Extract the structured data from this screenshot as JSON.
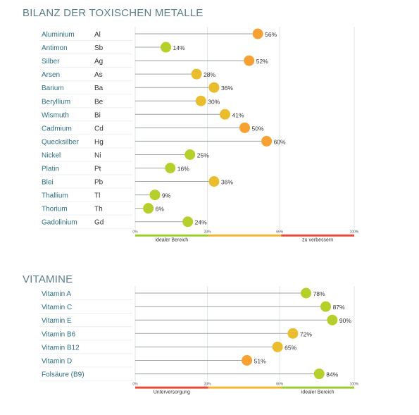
{
  "chart_data": [
    {
      "type": "lollipop",
      "title": "BILANZ DER TOXISCHEN METALLE",
      "unit": "%",
      "xlim": [
        0,
        100
      ],
      "ticks": [
        "0%",
        "33%",
        "66%",
        "100%"
      ],
      "categories": [
        "Aluminium",
        "Antimon",
        "Silber",
        "Arsen",
        "Barium",
        "Beryllium",
        "Wismuth",
        "Cadmium",
        "Quecksilber",
        "Nickel",
        "Platin",
        "Blei",
        "Thallium",
        "Thorium",
        "Gadolinium"
      ],
      "symbols": [
        "Al",
        "Sb",
        "Ag",
        "As",
        "Ba",
        "Be",
        "Bi",
        "Cd",
        "Hg",
        "Ni",
        "Pt",
        "Pb",
        "Tl",
        "Th",
        "Gd"
      ],
      "values": [
        56,
        14,
        52,
        28,
        36,
        30,
        41,
        50,
        60,
        25,
        16,
        36,
        9,
        6,
        24
      ],
      "value_labels": [
        "56%",
        "14%",
        "52%",
        "28%",
        "36%",
        "30%",
        "41%",
        "50%",
        "60%",
        "25%",
        "16%",
        "36%",
        "9%",
        "6%",
        "24%"
      ],
      "scale_bands": [
        {
          "label": "idealer Bereich",
          "color": "#9ccc2c"
        },
        {
          "label": "",
          "color": "#f2b732"
        },
        {
          "label": "zu verbessern",
          "color": "#e84a3a"
        }
      ]
    },
    {
      "type": "lollipop",
      "title": "VITAMINE",
      "unit": "%",
      "xlim": [
        0,
        100
      ],
      "ticks": [
        "0%",
        "33%",
        "66%",
        "100%"
      ],
      "categories": [
        "Vitamin A",
        "Vitamin C",
        "Vitamin E",
        "Vitamin B6",
        "Vitamin B12",
        "Vitamin D",
        "Folsäure (B9)"
      ],
      "values": [
        78,
        87,
        90,
        72,
        65,
        51,
        84
      ],
      "value_labels": [
        "78%",
        "87%",
        "90%",
        "72%",
        "65%",
        "51%",
        "84%"
      ],
      "scale_bands": [
        {
          "label": "Unterversorgung",
          "color": "#e84a3a"
        },
        {
          "label": "",
          "color": "#f2b732"
        },
        {
          "label": "idealer Bereich",
          "color": "#9ccc2c"
        }
      ]
    }
  ],
  "colors": {
    "good": "#b7cf2a",
    "mid": "#e9bd2d",
    "bad": "#f7a133",
    "label": "#2d6f82",
    "symbol": "#333333",
    "line": "#9aa4aa",
    "grid": "#dfe3e5"
  }
}
